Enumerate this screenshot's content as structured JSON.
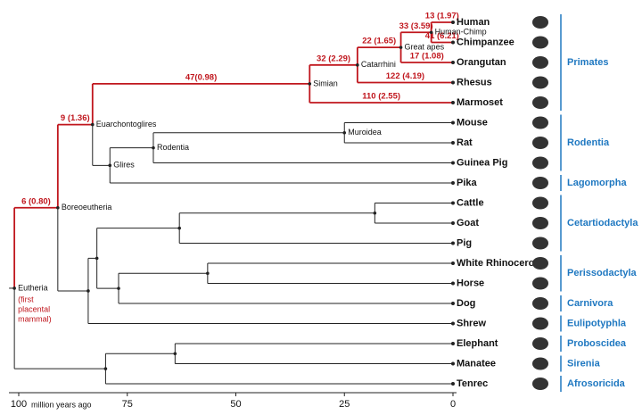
{
  "tree": {
    "axis": {
      "label": "million years ago",
      "xlim": [
        100,
        0
      ],
      "xticks": [
        100,
        75,
        50,
        25,
        0
      ]
    },
    "nodes": [
      {
        "label": "Eutheria",
        "note": [
          "(first",
          "placental",
          "mammal)"
        ],
        "age": 101
      },
      {
        "label": "Boreoeutheria",
        "age": 91,
        "parent": 0,
        "branch": "6 (0.80)",
        "red": true
      },
      {
        "label": "Euarchontoglires",
        "age": 83,
        "parent": 1,
        "branch": "9 (1.36)",
        "red": true
      },
      {
        "label": "Simian",
        "age": 33,
        "parent": 2,
        "branch": "47(0.98)",
        "red": true
      },
      {
        "label": "Catarrhini",
        "age": 22,
        "parent": 3,
        "branch": "32 (2.29)",
        "red": true
      },
      {
        "label": "Great apes",
        "age": 12,
        "parent": 4,
        "branch": "22 (1.65)",
        "red": true
      },
      {
        "label": "Human-Chimp",
        "age": 5,
        "parent": 5,
        "branch": "33 (3.59)",
        "red": true
      },
      {
        "label": "Glires",
        "age": 79,
        "parent": 2
      },
      {
        "label": "Rodentia",
        "age": 69,
        "parent": 7
      },
      {
        "label": "Muroidea",
        "age": 25,
        "parent": 8
      },
      {
        "age": 84,
        "parent": 1
      },
      {
        "age": 82,
        "parent": 10
      },
      {
        "age": 63,
        "parent": 11
      },
      {
        "age": 18,
        "parent": 12
      },
      {
        "age": 77,
        "parent": 11
      },
      {
        "age": 56.5,
        "parent": 14
      },
      {
        "age": 80,
        "parent": 0
      },
      {
        "age": 64,
        "parent": 16
      }
    ],
    "leaves": [
      {
        "name": "Human",
        "parent": 6,
        "branch": "13 (1.97)",
        "red": true
      },
      {
        "name": "Chimpanzee",
        "parent": 6,
        "branch": "41 (6.21)",
        "red": true
      },
      {
        "name": "Orangutan",
        "parent": 5,
        "branch": "17 (1.08)",
        "red": true
      },
      {
        "name": "Rhesus",
        "parent": 4,
        "branch": "122 (4.19)",
        "red": true
      },
      {
        "name": "Marmoset",
        "parent": 3,
        "branch": "110 (2.55)",
        "red": true
      },
      {
        "name": "Mouse",
        "parent": 9
      },
      {
        "name": "Rat",
        "parent": 9
      },
      {
        "name": "Guinea Pig",
        "parent": 8
      },
      {
        "name": "Pika",
        "parent": 7
      },
      {
        "name": "Cattle",
        "parent": 13
      },
      {
        "name": "Goat",
        "parent": 13
      },
      {
        "name": "Pig",
        "parent": 12
      },
      {
        "name": "White Rhinoceros",
        "parent": 15
      },
      {
        "name": "Horse",
        "parent": 15
      },
      {
        "name": "Dog",
        "parent": 14
      },
      {
        "name": "Shrew",
        "parent": 10
      },
      {
        "name": "Elephant",
        "parent": 17
      },
      {
        "name": "Manatee",
        "parent": 17
      },
      {
        "name": "Tenrec",
        "parent": 16
      }
    ],
    "groups": [
      {
        "name": "Primates",
        "from": 0,
        "to": 4
      },
      {
        "name": "Rodentia",
        "from": 5,
        "to": 7
      },
      {
        "name": "Lagomorpha",
        "from": 8,
        "to": 8
      },
      {
        "name": "Cetartiodactyla",
        "from": 9,
        "to": 11
      },
      {
        "name": "Perissodactyla",
        "from": 12,
        "to": 13
      },
      {
        "name": "Carnivora",
        "from": 14,
        "to": 14
      },
      {
        "name": "Eulipotyphla",
        "from": 15,
        "to": 15
      },
      {
        "name": "Proboscidea",
        "from": 16,
        "to": 16
      },
      {
        "name": "Sirenia",
        "from": 17,
        "to": 17
      },
      {
        "name": "Afrosoricida",
        "from": 18,
        "to": 18
      }
    ]
  }
}
